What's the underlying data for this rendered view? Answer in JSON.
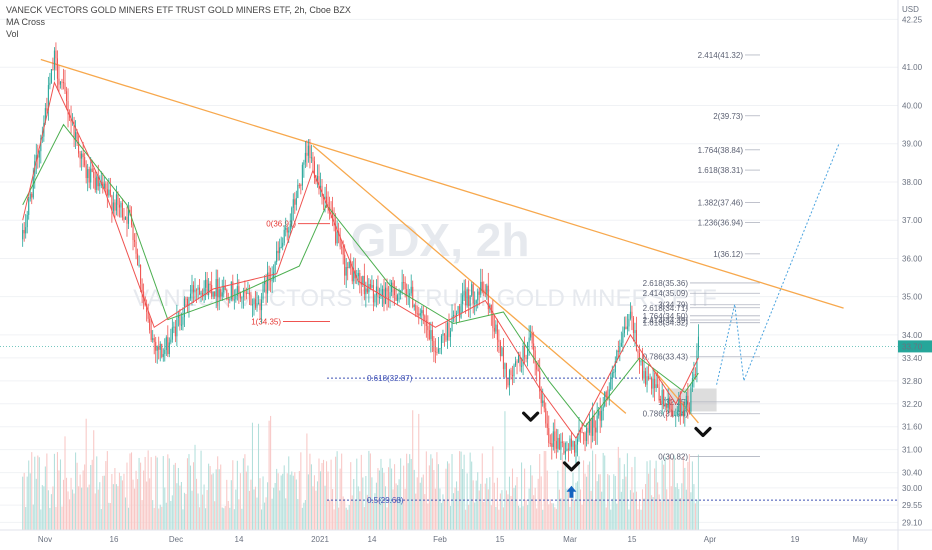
{
  "header": {
    "title": "VANECK VECTORS GOLD MINERS ETF TRUST GOLD MINERS ETF, 2h, Cboe BZX",
    "indicator_1": "MA Cross",
    "indicator_2": "Vol"
  },
  "watermark": {
    "ticker": "GDX, 2h",
    "name": "VANECK VECTORS ETF TRUST GOLD MINERS ETF"
  },
  "price_tag": "33.70",
  "currency": "USD",
  "colors": {
    "up": "#26a69a",
    "down": "#ef5350",
    "ma_fast": "#ef5350",
    "ma_slow": "#4caf50",
    "trendline": "#f7a84d",
    "fib": "#3f51b5",
    "projection": "#4aa3df",
    "price_line": "#26a69a",
    "marker": "#1565c0",
    "chevron": "#111111"
  },
  "chart_data": {
    "type": "candlestick",
    "x_ticks": [
      "Nov",
      "16",
      "Dec",
      "14",
      "2021",
      "14",
      "Feb",
      "15",
      "Mar",
      "15",
      "Apr",
      "19",
      "May"
    ],
    "y_ticks": [
      29.1,
      29.55,
      30.0,
      30.4,
      31.0,
      31.6,
      32.2,
      32.8,
      33.4,
      34.0,
      35.0,
      36.0,
      37.0,
      38.0,
      39.0,
      40.0,
      41.0,
      42.25
    ],
    "ylim": [
      28.9,
      42.6
    ],
    "last_price": 33.7,
    "anchors": [
      {
        "x": "2020-11-02",
        "y": 36.5
      },
      {
        "x": "2020-11-09",
        "y": 41.2
      },
      {
        "x": "2020-11-16",
        "y": 38.2
      },
      {
        "x": "2020-11-26",
        "y": 37.0
      },
      {
        "x": "2020-11-30",
        "y": 34.0
      },
      {
        "x": "2020-12-03",
        "y": 33.5
      },
      {
        "x": "2020-12-10",
        "y": 35.3
      },
      {
        "x": "2020-12-17",
        "y": 35.2
      },
      {
        "x": "2020-12-24",
        "y": 34.8
      },
      {
        "x": "2020-12-30",
        "y": 36.6
      },
      {
        "x": "2021-01-04",
        "y": 38.8
      },
      {
        "x": "2021-01-07",
        "y": 37.8
      },
      {
        "x": "2021-01-12",
        "y": 35.8
      },
      {
        "x": "2021-01-19",
        "y": 35.0
      },
      {
        "x": "2021-01-26",
        "y": 35.2
      },
      {
        "x": "2021-02-01",
        "y": 33.6
      },
      {
        "x": "2021-02-08",
        "y": 35.0
      },
      {
        "x": "2021-02-12",
        "y": 35.2
      },
      {
        "x": "2021-02-17",
        "y": 32.8
      },
      {
        "x": "2021-02-22",
        "y": 33.8
      },
      {
        "x": "2021-02-26",
        "y": 31.4
      },
      {
        "x": "2021-03-02",
        "y": 31.0
      },
      {
        "x": "2021-03-09",
        "y": 31.8
      },
      {
        "x": "2021-03-11",
        "y": 32.6
      },
      {
        "x": "2021-03-16",
        "y": 34.5
      },
      {
        "x": "2021-03-19",
        "y": 32.9
      },
      {
        "x": "2021-03-25",
        "y": 32.0
      },
      {
        "x": "2021-03-29",
        "y": 32.2
      },
      {
        "x": "2021-03-31",
        "y": 33.7
      }
    ],
    "ma_cross": {
      "fast": [
        {
          "x": "2020-11-02",
          "y": 37.0
        },
        {
          "x": "2020-11-09",
          "y": 40.6
        },
        {
          "x": "2020-11-20",
          "y": 37.8
        },
        {
          "x": "2020-12-01",
          "y": 34.2
        },
        {
          "x": "2020-12-14",
          "y": 35.2
        },
        {
          "x": "2020-12-28",
          "y": 35.6
        },
        {
          "x": "2021-01-05",
          "y": 38.3
        },
        {
          "x": "2021-01-15",
          "y": 35.4
        },
        {
          "x": "2021-02-01",
          "y": 34.2
        },
        {
          "x": "2021-02-12",
          "y": 34.9
        },
        {
          "x": "2021-02-24",
          "y": 32.6
        },
        {
          "x": "2021-03-04",
          "y": 31.3
        },
        {
          "x": "2021-03-16",
          "y": 34.0
        },
        {
          "x": "2021-03-26",
          "y": 32.2
        },
        {
          "x": "2021-03-31",
          "y": 33.4
        }
      ],
      "slow": [
        {
          "x": "2020-11-02",
          "y": 37.4
        },
        {
          "x": "2020-11-11",
          "y": 39.5
        },
        {
          "x": "2020-11-25",
          "y": 37.4
        },
        {
          "x": "2020-12-04",
          "y": 34.4
        },
        {
          "x": "2020-12-18",
          "y": 35.0
        },
        {
          "x": "2021-01-02",
          "y": 35.8
        },
        {
          "x": "2021-01-08",
          "y": 37.4
        },
        {
          "x": "2021-01-22",
          "y": 35.3
        },
        {
          "x": "2021-02-05",
          "y": 34.3
        },
        {
          "x": "2021-02-16",
          "y": 34.6
        },
        {
          "x": "2021-02-26",
          "y": 32.8
        },
        {
          "x": "2021-03-06",
          "y": 31.6
        },
        {
          "x": "2021-03-18",
          "y": 33.4
        },
        {
          "x": "2021-03-28",
          "y": 32.5
        },
        {
          "x": "2021-03-31",
          "y": 33.0
        }
      ]
    },
    "trendlines": [
      {
        "from": {
          "x": "2020-11-06",
          "y": 41.2
        },
        "to": {
          "x": "2021-05-02",
          "y": 34.7
        }
      },
      {
        "from": {
          "x": "2021-01-05",
          "y": 38.95
        },
        "to": {
          "x": "2021-03-15",
          "y": 31.95
        }
      },
      {
        "from": {
          "x": "2021-03-21",
          "y": 33.1
        },
        "to": {
          "x": "2021-03-31",
          "y": 31.7
        }
      }
    ],
    "fib_left": {
      "levels": [
        {
          "label": "0(36.91)",
          "value": 36.91
        },
        {
          "label": "1(34.35)",
          "value": 34.35
        },
        {
          "label": "0.618(32.87)",
          "value": 32.87
        },
        {
          "label": "0.5(29.68)",
          "value": 29.68
        }
      ]
    },
    "fib_right": {
      "levels": [
        {
          "label": "2.414(41.32)",
          "value": 41.32
        },
        {
          "label": "2(39.73)",
          "value": 39.73
        },
        {
          "label": "1.764(38.84)",
          "value": 38.84
        },
        {
          "label": "1.618(38.31)",
          "value": 38.31
        },
        {
          "label": "1.382(37.46)",
          "value": 37.46
        },
        {
          "label": "1.236(36.94)",
          "value": 36.94
        },
        {
          "label": "1(36.12)",
          "value": 36.12
        },
        {
          "label": "2.618(35.36)",
          "value": 35.36
        },
        {
          "label": "2.414(35.09)",
          "value": 35.09
        },
        {
          "label": "3(34.79)",
          "value": 34.79
        },
        {
          "label": "2.618(34.71)",
          "value": 34.71
        },
        {
          "label": "1.764(34.50)",
          "value": 34.5
        },
        {
          "label": "2.414(34.39)",
          "value": 34.39
        },
        {
          "label": "1.618(34.32)",
          "value": 34.32
        },
        {
          "label": "0.786(33.43)",
          "value": 33.43
        },
        {
          "label": "1(32.25)",
          "value": 32.25
        },
        {
          "label": "0.786(31.94)",
          "value": 31.94
        },
        {
          "label": "0(30.82)",
          "value": 30.82
        }
      ]
    },
    "projection": [
      {
        "x": "2021-04-04",
        "y": 32.7
      },
      {
        "x": "2021-04-08",
        "y": 34.8
      },
      {
        "x": "2021-04-10",
        "y": 32.8
      },
      {
        "x": "2021-05-01",
        "y": 39.0
      }
    ],
    "zone": {
      "from": "2021-03-24",
      "to": "2021-04-04",
      "low": 32.0,
      "high": 32.6
    },
    "chevrons": [
      {
        "x": "2021-02-22",
        "y": 31.85
      },
      {
        "x": "2021-03-03",
        "y": 30.55
      },
      {
        "x": "2021-04-01",
        "y": 31.45
      }
    ],
    "arrow": {
      "x": "2021-03-03",
      "y": 29.9
    },
    "date_range": {
      "start": "2020-10-28",
      "end": "2021-05-14"
    }
  }
}
